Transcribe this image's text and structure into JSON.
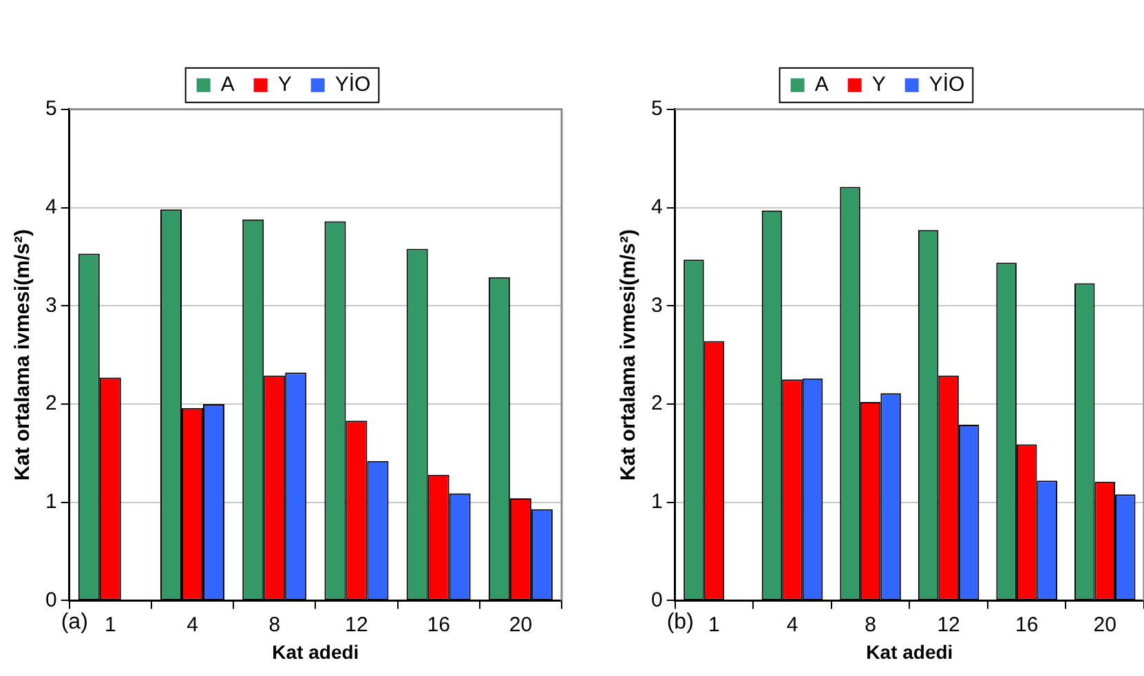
{
  "chart_data": [
    {
      "type": "bar",
      "categories": [
        "1",
        "4",
        "8",
        "12",
        "16",
        "20"
      ],
      "xlabel": "Kat adedi",
      "ylabel": "Kat ortalama ivmesi(m/s²)",
      "ylim": [
        0,
        5
      ],
      "yticks": [
        0,
        1,
        2,
        3,
        4,
        5
      ],
      "grid": "y",
      "legend": "top",
      "annotations": [
        "(a)"
      ],
      "series": [
        {
          "name": "A",
          "color": "#339966",
          "values": [
            3.53,
            3.98,
            3.88,
            3.86,
            3.58,
            3.29
          ]
        },
        {
          "name": "Y",
          "color": "#ff0000",
          "values": [
            2.27,
            1.96,
            2.29,
            1.83,
            1.28,
            1.04
          ]
        },
        {
          "name": "YİO",
          "color": "#3366ff",
          "values": [
            null,
            2.0,
            2.32,
            1.42,
            1.09,
            0.93
          ]
        }
      ]
    },
    {
      "type": "bar",
      "categories": [
        "1",
        "4",
        "8",
        "12",
        "16",
        "20"
      ],
      "xlabel": "Kat adedi",
      "ylabel": "Kat ortalama ivmesi(m/s²)",
      "ylim": [
        0,
        5
      ],
      "yticks": [
        0,
        1,
        2,
        3,
        4,
        5
      ],
      "grid": "y",
      "legend": "top",
      "annotations": [
        "(b)"
      ],
      "series": [
        {
          "name": "A",
          "color": "#339966",
          "values": [
            3.47,
            3.97,
            4.21,
            3.77,
            3.44,
            3.23
          ]
        },
        {
          "name": "Y",
          "color": "#ff0000",
          "values": [
            2.64,
            2.25,
            2.02,
            2.29,
            1.59,
            1.21
          ]
        },
        {
          "name": "YİO",
          "color": "#3366ff",
          "values": [
            null,
            2.26,
            2.11,
            1.79,
            1.22,
            1.08
          ]
        }
      ]
    }
  ]
}
